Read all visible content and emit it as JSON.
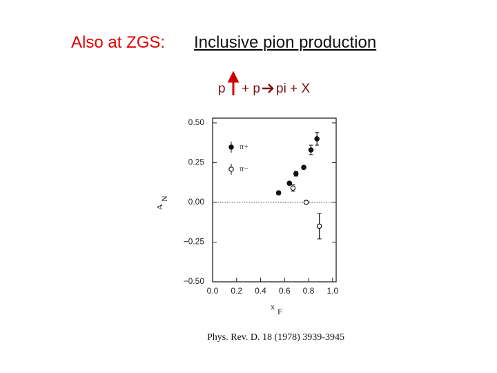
{
  "slide": {
    "title_prefix": "Also at ZGS:",
    "title": "Inclusive pion production",
    "reaction_beam": "p",
    "reaction_target": "+ p",
    "reaction_products": "pi + X",
    "citation": "Phys. Rev. D. 18 (1978) 3939-3945"
  },
  "chart_data": {
    "type": "scatter",
    "xlabel": "x",
    "xlabel_sub": "F",
    "ylabel": "A",
    "ylabel_sub": "N",
    "xlim": [
      0,
      1.03
    ],
    "ylim": [
      -0.5,
      0.53
    ],
    "xticks": [
      {
        "value": 0,
        "label": "0.0"
      },
      {
        "value": 0.2,
        "label": "0.2"
      },
      {
        "value": 0.4,
        "label": "0.4"
      },
      {
        "value": 0.6,
        "label": "0.6"
      },
      {
        "value": 0.8,
        "label": "0.8"
      },
      {
        "value": 1,
        "label": "1.0"
      }
    ],
    "yticks": [
      {
        "value": -0.5,
        "label": "−0.50"
      },
      {
        "value": -0.25,
        "label": "−0.25"
      },
      {
        "value": 0,
        "label": "0.00"
      },
      {
        "value": 0.25,
        "label": "0.25"
      },
      {
        "value": 0.5,
        "label": "0.50"
      }
    ],
    "reference_line": 0,
    "series": [
      {
        "name": "π+",
        "filled": true,
        "color": "#111111",
        "x": [
          0.55,
          0.64,
          0.695,
          0.76,
          0.82,
          0.87
        ],
        "values": [
          0.06,
          0.12,
          0.18,
          0.22,
          0.33,
          0.4
        ],
        "errors": [
          0.01,
          0.01,
          0.015,
          0.01,
          0.03,
          0.04
        ]
      },
      {
        "name": "π−",
        "filled": false,
        "color": "#111111",
        "x": [
          0.67,
          0.78,
          0.89
        ],
        "values": [
          0.09,
          0.0,
          -0.15
        ],
        "errors": [
          0.02,
          0.01,
          0.08
        ]
      }
    ]
  }
}
